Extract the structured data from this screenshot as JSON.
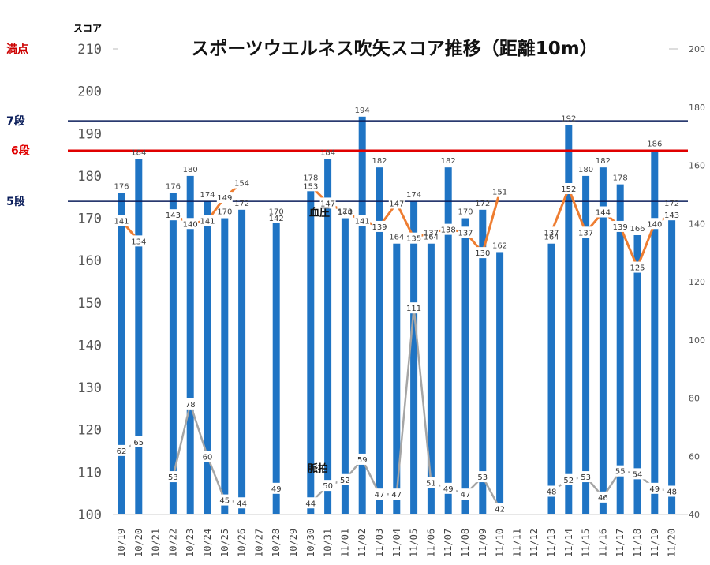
{
  "chart_data": {
    "type": "bar",
    "title": "スポーツウエルネス吹矢スコア推移（距離10m）",
    "ylabel": "スコア",
    "ylim": [
      100,
      210
    ],
    "y_ticks": [
      100,
      110,
      120,
      130,
      140,
      150,
      160,
      170,
      180,
      190,
      200,
      210
    ],
    "y2lim": [
      40,
      200
    ],
    "y2_ticks": [
      40,
      60,
      80,
      100,
      120,
      140,
      160,
      180,
      200
    ],
    "grid": false,
    "colors": {
      "bar": "#1f74c4",
      "bp": "#ee7d31",
      "pulse": "#a5a5a5",
      "full": "#cc0000",
      "rank_red": "#e00000",
      "rank_navy": "#0b1e5b"
    },
    "categories": [
      "10/19",
      "10/20",
      "10/21",
      "10/22",
      "10/23",
      "10/24",
      "10/25",
      "10/26",
      "10/27",
      "10/28",
      "10/29",
      "10/30",
      "10/31",
      "11/01",
      "11/02",
      "11/03",
      "11/04",
      "11/05",
      "11/06",
      "11/07",
      "11/08",
      "11/09",
      "11/10",
      "11/11",
      "11/12",
      "11/13",
      "11/14",
      "11/15",
      "11/16",
      "11/17",
      "11/18",
      "11/19",
      "11/20"
    ],
    "series": [
      {
        "kind": "bar",
        "values": [
          176,
          184,
          null,
          176,
          180,
          174,
          170,
          172,
          null,
          170,
          null,
          178,
          184,
          170,
          194,
          182,
          164,
          174,
          164,
          182,
          170,
          172,
          162,
          null,
          null,
          164,
          192,
          180,
          182,
          178,
          166,
          186,
          172
        ]
      },
      {
        "kind": "line",
        "axis": "secondary",
        "name": "血圧",
        "values": [
          141,
          134,
          null,
          143,
          140,
          141,
          149,
          154,
          null,
          142,
          null,
          153,
          147,
          144,
          141,
          139,
          147,
          135,
          137,
          138,
          137,
          130,
          151,
          null,
          null,
          137,
          152,
          137,
          144,
          139,
          125,
          140,
          143
        ]
      },
      {
        "kind": "line",
        "axis": "secondary",
        "name": "脈拍",
        "values": [
          62,
          65,
          null,
          53,
          78,
          60,
          45,
          44,
          null,
          49,
          null,
          44,
          50,
          52,
          59,
          47,
          47,
          111,
          51,
          49,
          47,
          53,
          42,
          null,
          null,
          48,
          52,
          53,
          46,
          55,
          54,
          49,
          48
        ]
      }
    ],
    "reference_lines": [
      {
        "label": "満点",
        "value": 210
      },
      {
        "label": "7段",
        "value": 193
      },
      {
        "label": "6段",
        "value": 186
      },
      {
        "label": "5段",
        "value": 174
      }
    ]
  }
}
